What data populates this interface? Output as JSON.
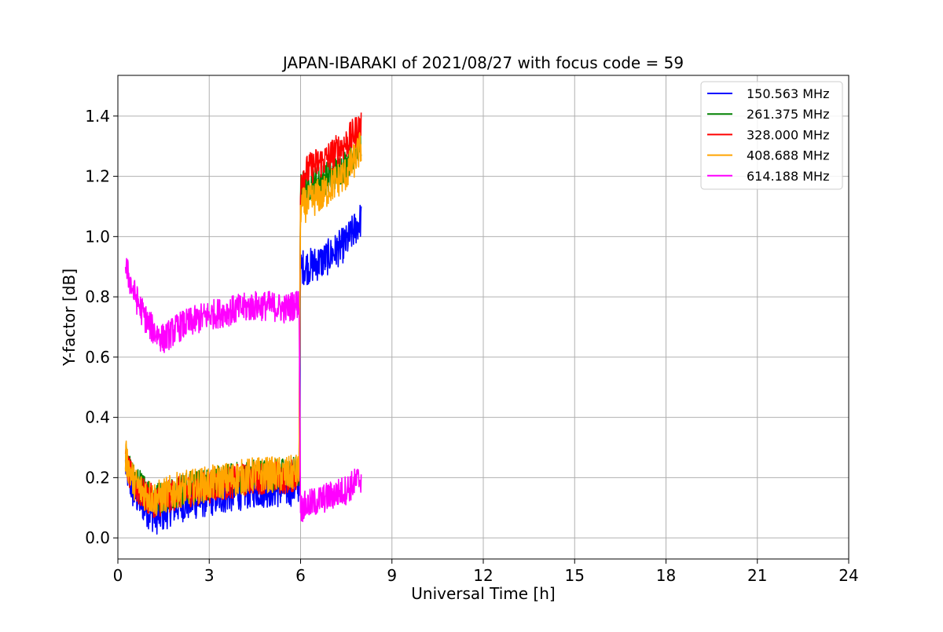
{
  "chart_data": {
    "type": "line",
    "title": "JAPAN-IBARAKI of 2021/08/27 with focus code = 59",
    "xlabel": "Universal Time [h]",
    "ylabel": "Y-factor [dB]",
    "xlim": [
      0,
      24
    ],
    "ylim": [
      -0.07,
      1.535
    ],
    "xticks": [
      0,
      3,
      6,
      9,
      12,
      15,
      18,
      21,
      24
    ],
    "yticks": [
      0.0,
      0.2,
      0.4,
      0.6,
      0.8,
      1.0,
      1.2,
      1.4
    ],
    "ytick_labels": [
      "0.0",
      "0.2",
      "0.4",
      "0.6",
      "0.8",
      "1.0",
      "1.2",
      "1.4"
    ],
    "grid": true,
    "legend_position": "top-right",
    "series": [
      {
        "name": "150.563 MHz",
        "color": "#0000ff",
        "x": [
          0.25,
          0.5,
          0.75,
          1.0,
          1.25,
          1.5,
          1.75,
          2.0,
          2.5,
          3.0,
          3.5,
          4.0,
          4.5,
          5.0,
          5.5,
          5.95,
          6.0,
          6.25,
          6.5,
          6.75,
          7.0,
          7.25,
          7.5,
          7.75,
          8.0
        ],
        "y": [
          0.24,
          0.15,
          0.12,
          0.09,
          0.07,
          0.08,
          0.1,
          0.11,
          0.12,
          0.13,
          0.14,
          0.15,
          0.16,
          0.16,
          0.16,
          0.17,
          0.9,
          0.9,
          0.91,
          0.92,
          0.94,
          0.96,
          0.98,
          1.02,
          1.06
        ],
        "noise": 0.06
      },
      {
        "name": "261.375 MHz",
        "color": "#008000",
        "x": [
          0.25,
          0.5,
          0.75,
          1.0,
          1.25,
          1.5,
          1.75,
          2.0,
          2.5,
          3.0,
          3.5,
          4.0,
          4.5,
          5.0,
          5.5,
          5.95,
          6.0,
          6.25,
          6.5,
          6.75,
          7.0,
          7.25,
          7.5,
          7.75,
          8.0
        ],
        "y": [
          0.27,
          0.19,
          0.17,
          0.15,
          0.13,
          0.14,
          0.15,
          0.16,
          0.17,
          0.18,
          0.19,
          0.2,
          0.21,
          0.21,
          0.21,
          0.22,
          1.16,
          1.17,
          1.18,
          1.19,
          1.2,
          1.22,
          1.24,
          1.28,
          1.32
        ],
        "noise": 0.055
      },
      {
        "name": "328.000 MHz",
        "color": "#ff0000",
        "x": [
          0.25,
          0.5,
          0.75,
          1.0,
          1.25,
          1.5,
          1.75,
          2.0,
          2.5,
          3.0,
          3.5,
          4.0,
          4.5,
          5.0,
          5.5,
          5.95,
          6.0,
          6.25,
          6.5,
          6.75,
          7.0,
          7.25,
          7.5,
          7.75,
          8.0
        ],
        "y": [
          0.25,
          0.18,
          0.15,
          0.13,
          0.12,
          0.13,
          0.14,
          0.15,
          0.16,
          0.17,
          0.18,
          0.19,
          0.2,
          0.2,
          0.2,
          0.21,
          1.2,
          1.22,
          1.24,
          1.25,
          1.27,
          1.29,
          1.31,
          1.34,
          1.37
        ],
        "noise": 0.055
      },
      {
        "name": "408.688 MHz",
        "color": "#ffa500",
        "x": [
          0.25,
          0.5,
          0.75,
          1.0,
          1.25,
          1.5,
          1.75,
          2.0,
          2.5,
          3.0,
          3.5,
          4.0,
          4.5,
          5.0,
          5.5,
          5.95,
          6.0,
          6.25,
          6.5,
          6.75,
          7.0,
          7.25,
          7.5,
          7.75,
          8.0
        ],
        "y": [
          0.27,
          0.19,
          0.16,
          0.14,
          0.13,
          0.14,
          0.15,
          0.16,
          0.17,
          0.18,
          0.19,
          0.2,
          0.21,
          0.21,
          0.21,
          0.22,
          1.1,
          1.11,
          1.13,
          1.14,
          1.17,
          1.19,
          1.21,
          1.25,
          1.3
        ],
        "noise": 0.06
      },
      {
        "name": "614.188 MHz",
        "color": "#ff00ff",
        "x": [
          0.25,
          0.5,
          0.75,
          1.0,
          1.25,
          1.5,
          1.75,
          2.0,
          2.5,
          3.0,
          3.5,
          4.0,
          4.5,
          5.0,
          5.5,
          5.95,
          6.0,
          6.25,
          6.5,
          6.75,
          7.0,
          7.25,
          7.5,
          7.75,
          8.0
        ],
        "y": [
          0.9,
          0.82,
          0.76,
          0.71,
          0.68,
          0.66,
          0.68,
          0.7,
          0.72,
          0.74,
          0.75,
          0.76,
          0.77,
          0.77,
          0.76,
          0.78,
          0.1,
          0.11,
          0.12,
          0.13,
          0.14,
          0.15,
          0.16,
          0.18,
          0.2
        ],
        "noise": 0.05
      }
    ]
  }
}
